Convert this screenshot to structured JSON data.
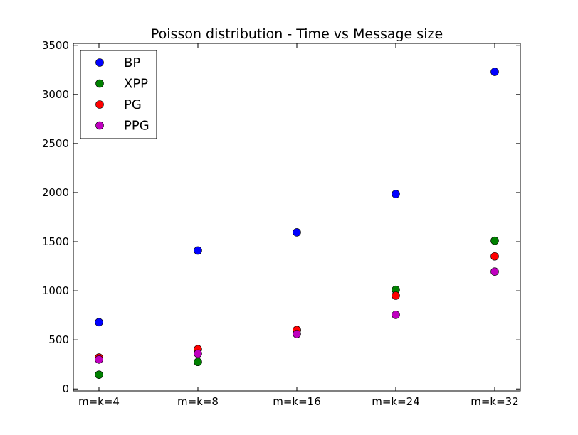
{
  "chart_data": {
    "type": "scatter",
    "title": "Poisson distribution - Time vs Message size",
    "xlabel": "",
    "ylabel": "",
    "categories": [
      "m=k=4",
      "m=k=8",
      "m=k=16",
      "m=k=24",
      "m=k=32"
    ],
    "ylim": [
      -20,
      3520
    ],
    "yticks": [
      0,
      500,
      1000,
      1500,
      2000,
      2500,
      3000,
      3500
    ],
    "legend_position": "top-left",
    "grid": false,
    "series": [
      {
        "name": "BP",
        "color": "#0000ff",
        "values": [
          680,
          1410,
          1595,
          1985,
          3230
        ]
      },
      {
        "name": "XPP",
        "color": "#008000",
        "values": [
          145,
          275,
          600,
          1010,
          1510
        ]
      },
      {
        "name": "PG",
        "color": "#ff0000",
        "values": [
          320,
          405,
          600,
          950,
          1350
        ]
      },
      {
        "name": "PPG",
        "color": "#bf00bf",
        "values": [
          300,
          360,
          560,
          755,
          1195
        ]
      }
    ]
  }
}
